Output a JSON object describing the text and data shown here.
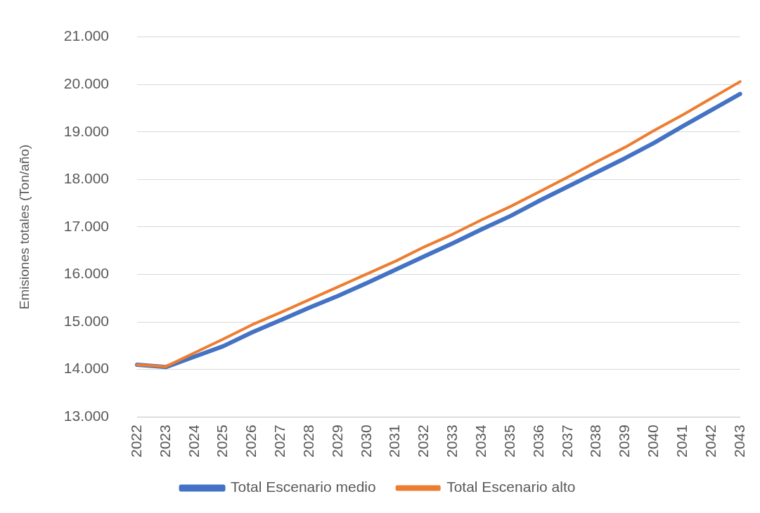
{
  "chart_data": {
    "type": "line",
    "ylabel": "Emisiones totales (Ton/año)",
    "categories": [
      "2022",
      "2023",
      "2024",
      "2025",
      "2026",
      "2027",
      "2028",
      "2029",
      "2030",
      "2031",
      "2032",
      "2033",
      "2034",
      "2035",
      "2036",
      "2037",
      "2038",
      "2039",
      "2040",
      "2041",
      "2042",
      "2043"
    ],
    "series": [
      {
        "name": "Total Escenario medio",
        "color": "#4472c4",
        "values": [
          14100,
          14050,
          14270,
          14490,
          14780,
          15040,
          15300,
          15550,
          15820,
          16100,
          16380,
          16660,
          16950,
          17230,
          17550,
          17850,
          18150,
          18450,
          18770,
          19120,
          19460,
          19800
        ]
      },
      {
        "name": "Total Escenario alto",
        "color": "#ed7d31",
        "values": [
          14100,
          14060,
          14350,
          14640,
          14940,
          15200,
          15470,
          15740,
          16010,
          16280,
          16580,
          16850,
          17150,
          17430,
          17740,
          18050,
          18370,
          18680,
          19030,
          19360,
          19710,
          20060
        ]
      }
    ],
    "ylim": [
      13000,
      21000
    ],
    "yticks": [
      {
        "value": 13000,
        "label": "13.000"
      },
      {
        "value": 14000,
        "label": "14.000"
      },
      {
        "value": 15000,
        "label": "15.000"
      },
      {
        "value": 16000,
        "label": "16.000"
      },
      {
        "value": 17000,
        "label": "17.000"
      },
      {
        "value": 18000,
        "label": "18.000"
      },
      {
        "value": 19000,
        "label": "19.000"
      },
      {
        "value": 20000,
        "label": "20.000"
      },
      {
        "value": 21000,
        "label": "21.000"
      }
    ],
    "grid": "y",
    "legend": "bottom",
    "marker": "none",
    "line_style": "solid"
  }
}
